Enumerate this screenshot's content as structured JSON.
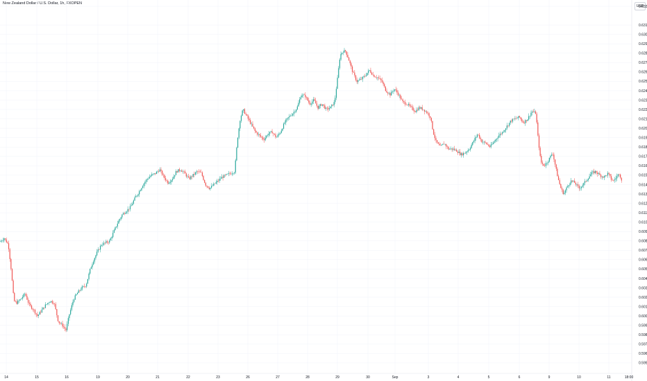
{
  "chart_data": {
    "type": "candlestick",
    "title": "New Zealand Dollar / U.S. Dollar, 1h, FXOPEN",
    "currency": "USD",
    "x_tick_labels": [
      "14",
      "15",
      "16",
      "19",
      "20",
      "21",
      "22",
      "23",
      "26",
      "27",
      "28",
      "29",
      "30",
      "Sep",
      "3",
      "4",
      "5",
      "6",
      "9",
      "10",
      "11",
      "18:00"
    ],
    "y_tick_labels": [
      "0.63300",
      "0.63100",
      "0.63000",
      "0.62900",
      "0.62800",
      "0.62700",
      "0.62600",
      "0.62500",
      "0.62400",
      "0.62300",
      "0.62200",
      "0.62100",
      "0.62000",
      "0.61900",
      "0.61800",
      "0.61700",
      "0.61600",
      "0.61500",
      "0.61400",
      "0.61300",
      "0.61200",
      "0.61100",
      "0.61000",
      "0.60900",
      "0.60800",
      "0.60700",
      "0.60600",
      "0.60500",
      "0.60400",
      "0.60300",
      "0.60200",
      "0.60100",
      "0.60000",
      "0.59900",
      "0.59800",
      "0.59700",
      "0.59600",
      "0.59500"
    ],
    "ylim": [
      0.5953,
      0.6334
    ],
    "colors": {
      "up": "#26a69a",
      "down": "#ef5350",
      "grid": "#f0f3fa",
      "axis": "#e0e3eb"
    },
    "price_path": [
      [
        0,
        0.6079
      ],
      [
        6,
        0.6083
      ],
      [
        12,
        0.6076
      ],
      [
        16,
        0.605
      ],
      [
        20,
        0.6016
      ],
      [
        24,
        0.6014
      ],
      [
        30,
        0.6018
      ],
      [
        36,
        0.6024
      ],
      [
        42,
        0.6012
      ],
      [
        48,
        0.6007
      ],
      [
        54,
        0.6
      ],
      [
        60,
        0.6006
      ],
      [
        66,
        0.6012
      ],
      [
        72,
        0.6016
      ],
      [
        78,
        0.6014
      ],
      [
        84,
        0.5994
      ],
      [
        90,
        0.599
      ],
      [
        95,
        0.5985
      ],
      [
        100,
        0.6002
      ],
      [
        106,
        0.6018
      ],
      [
        112,
        0.6025
      ],
      [
        118,
        0.603
      ],
      [
        124,
        0.6033
      ],
      [
        130,
        0.605
      ],
      [
        135,
        0.606
      ],
      [
        140,
        0.6068
      ],
      [
        146,
        0.6076
      ],
      [
        152,
        0.6078
      ],
      [
        158,
        0.608
      ],
      [
        164,
        0.609
      ],
      [
        170,
        0.61
      ],
      [
        176,
        0.6108
      ],
      [
        182,
        0.6112
      ],
      [
        188,
        0.6116
      ],
      [
        194,
        0.6125
      ],
      [
        200,
        0.6132
      ],
      [
        206,
        0.614
      ],
      [
        212,
        0.6146
      ],
      [
        218,
        0.615
      ],
      [
        224,
        0.6152
      ],
      [
        230,
        0.6156
      ],
      [
        236,
        0.6148
      ],
      [
        242,
        0.6142
      ],
      [
        248,
        0.6146
      ],
      [
        254,
        0.6154
      ],
      [
        260,
        0.6156
      ],
      [
        266,
        0.6152
      ],
      [
        272,
        0.6146
      ],
      [
        278,
        0.615
      ],
      [
        284,
        0.6154
      ],
      [
        290,
        0.6152
      ],
      [
        296,
        0.614
      ],
      [
        302,
        0.6136
      ],
      [
        308,
        0.614
      ],
      [
        314,
        0.6144
      ],
      [
        320,
        0.6148
      ],
      [
        326,
        0.615
      ],
      [
        332,
        0.6152
      ],
      [
        338,
        0.6154
      ],
      [
        342,
        0.6188
      ],
      [
        346,
        0.621
      ],
      [
        350,
        0.622
      ],
      [
        356,
        0.6212
      ],
      [
        362,
        0.6204
      ],
      [
        368,
        0.6196
      ],
      [
        374,
        0.6192
      ],
      [
        380,
        0.6188
      ],
      [
        386,
        0.6194
      ],
      [
        392,
        0.6196
      ],
      [
        398,
        0.619
      ],
      [
        404,
        0.6196
      ],
      [
        410,
        0.6206
      ],
      [
        416,
        0.6212
      ],
      [
        422,
        0.6216
      ],
      [
        428,
        0.6222
      ],
      [
        434,
        0.6236
      ],
      [
        440,
        0.6234
      ],
      [
        446,
        0.6226
      ],
      [
        452,
        0.623
      ],
      [
        458,
        0.6222
      ],
      [
        464,
        0.6226
      ],
      [
        470,
        0.622
      ],
      [
        476,
        0.6222
      ],
      [
        482,
        0.6228
      ],
      [
        486,
        0.6252
      ],
      [
        490,
        0.6278
      ],
      [
        494,
        0.6282
      ],
      [
        498,
        0.6282
      ],
      [
        502,
        0.6274
      ],
      [
        508,
        0.626
      ],
      [
        514,
        0.625
      ],
      [
        520,
        0.6252
      ],
      [
        526,
        0.6256
      ],
      [
        532,
        0.6262
      ],
      [
        538,
        0.6256
      ],
      [
        544,
        0.6254
      ],
      [
        550,
        0.625
      ],
      [
        556,
        0.624
      ],
      [
        562,
        0.6236
      ],
      [
        568,
        0.6242
      ],
      [
        574,
        0.6236
      ],
      [
        580,
        0.6228
      ],
      [
        586,
        0.6226
      ],
      [
        592,
        0.6222
      ],
      [
        598,
        0.6218
      ],
      [
        604,
        0.6222
      ],
      [
        610,
        0.622
      ],
      [
        616,
        0.6216
      ],
      [
        620,
        0.6212
      ],
      [
        624,
        0.6196
      ],
      [
        628,
        0.6186
      ],
      [
        634,
        0.618
      ],
      [
        640,
        0.6184
      ],
      [
        646,
        0.6178
      ],
      [
        652,
        0.6178
      ],
      [
        658,
        0.6176
      ],
      [
        664,
        0.6172
      ],
      [
        670,
        0.6174
      ],
      [
        676,
        0.6178
      ],
      [
        682,
        0.6186
      ],
      [
        688,
        0.6194
      ],
      [
        694,
        0.6186
      ],
      [
        700,
        0.6184
      ],
      [
        706,
        0.618
      ],
      [
        712,
        0.6186
      ],
      [
        718,
        0.6192
      ],
      [
        724,
        0.6196
      ],
      [
        730,
        0.6202
      ],
      [
        736,
        0.6208
      ],
      [
        742,
        0.621
      ],
      [
        748,
        0.6212
      ],
      [
        754,
        0.6206
      ],
      [
        760,
        0.621
      ],
      [
        766,
        0.6218
      ],
      [
        772,
        0.6216
      ],
      [
        775,
        0.619
      ],
      [
        779,
        0.6164
      ],
      [
        784,
        0.616
      ],
      [
        790,
        0.6166
      ],
      [
        796,
        0.6174
      ],
      [
        800,
        0.616
      ],
      [
        804,
        0.6146
      ],
      [
        808,
        0.6136
      ],
      [
        812,
        0.613
      ],
      [
        816,
        0.6136
      ],
      [
        822,
        0.6144
      ],
      [
        828,
        0.6142
      ],
      [
        834,
        0.6136
      ],
      [
        840,
        0.614
      ],
      [
        846,
        0.6146
      ],
      [
        852,
        0.6152
      ],
      [
        858,
        0.6154
      ],
      [
        864,
        0.615
      ],
      [
        870,
        0.6148
      ],
      [
        876,
        0.6152
      ],
      [
        880,
        0.6146
      ],
      [
        884,
        0.6144
      ],
      [
        888,
        0.6148
      ],
      [
        892,
        0.6152
      ],
      [
        896,
        0.6144
      ]
    ]
  }
}
